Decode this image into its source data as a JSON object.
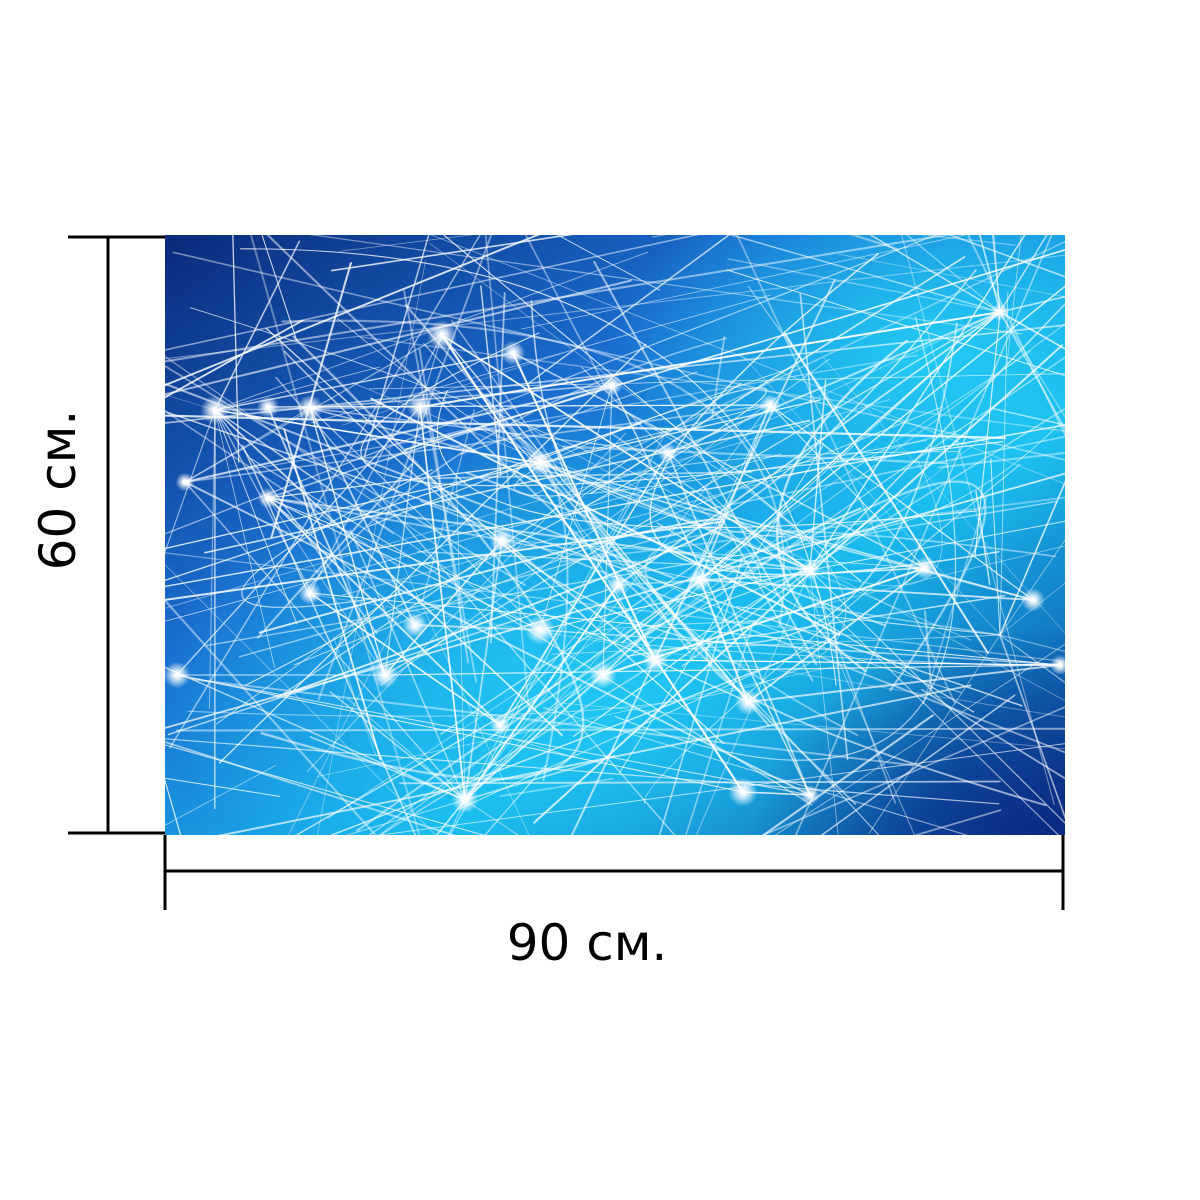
{
  "dimensions": {
    "width_label": "90 см.",
    "height_label": "60 см."
  },
  "artwork": {
    "description_icon": "abstract-network-pattern",
    "colors": {
      "deep_blue": "#0a2a7a",
      "mid_blue": "#1a6fd0",
      "cyan": "#18b8ee",
      "line_white": "#ffffff"
    }
  },
  "colors": {
    "dimension_line": "#000000",
    "background": "#ffffff"
  }
}
